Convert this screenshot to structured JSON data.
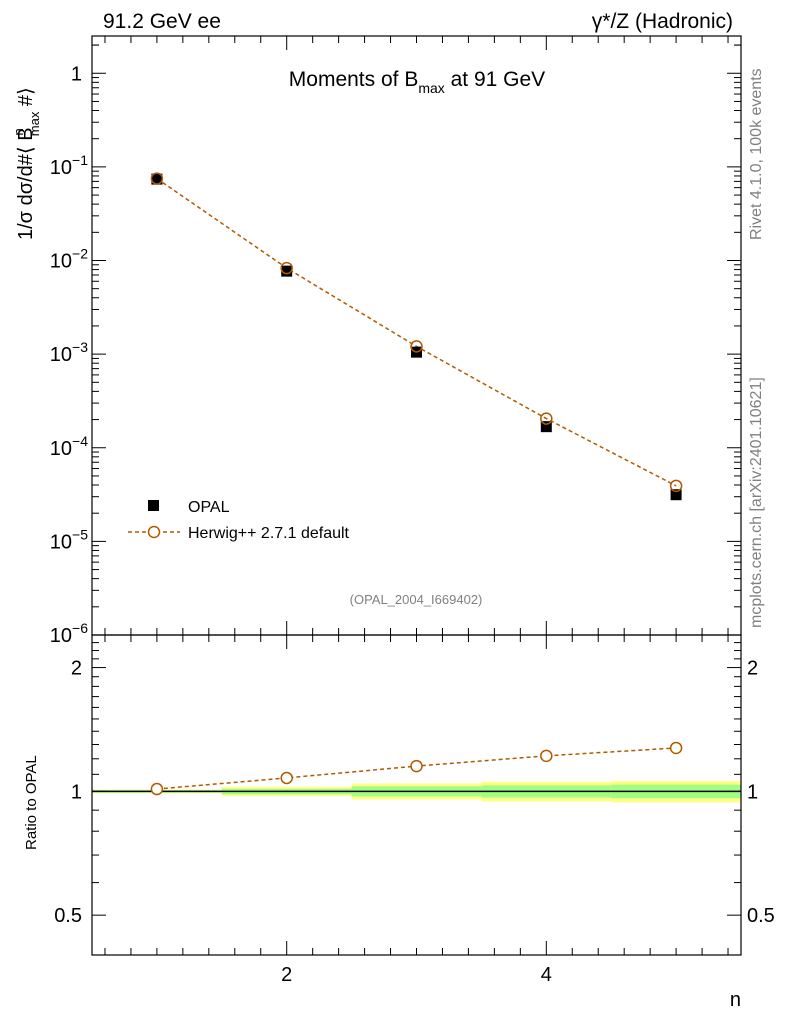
{
  "header": {
    "left_label": "91.2 GeV ee",
    "right_label": "γ*/Z (Hadronic)"
  },
  "side_labels": {
    "rivet": "Rivet 4.1.0,  100k events",
    "mcplots": "mcplots.cern.ch [arXiv:2401.10621]"
  },
  "chart_data": [
    {
      "type": "scatter",
      "panel": "main",
      "title": "Moments of B",
      "title_sub": "max",
      "title_tail": " at 91 GeV",
      "ylabel": "1/σ  dσ/d#⟨ B",
      "ylabel_sub": "max",
      "ylabel_sup": "n",
      "ylabel_tail": " #⟩",
      "yscale": "log",
      "ylim": [
        1e-06,
        2.5
      ],
      "xlim": [
        0.5,
        5.5
      ],
      "y_ticks": [
        {
          "value": 1,
          "label": "1",
          "sup": ""
        },
        {
          "value": 0.1,
          "label": "10",
          "sup": "−1"
        },
        {
          "value": 0.01,
          "label": "10",
          "sup": "−2"
        },
        {
          "value": 0.001,
          "label": "10",
          "sup": "−3"
        },
        {
          "value": 0.0001,
          "label": "10",
          "sup": "−4"
        },
        {
          "value": 1e-05,
          "label": "10",
          "sup": "−5"
        },
        {
          "value": 1e-06,
          "label": "10",
          "sup": "−6"
        }
      ],
      "x": [
        1,
        2,
        3,
        4,
        5
      ],
      "series": [
        {
          "name": "OPAL",
          "marker": "square",
          "color": "#000000",
          "values": [
            0.074,
            0.0077,
            0.00105,
            0.000168,
            3.15e-05
          ]
        },
        {
          "name": "Herwig++ 2.7.1 default",
          "marker": "open-circle",
          "color": "#b35900",
          "values": [
            0.075,
            0.0083,
            0.00121,
            0.000205,
            3.92e-05
          ]
        }
      ],
      "legend_position": "bottom-left",
      "annotation": "(OPAL_2004_I669402)"
    },
    {
      "type": "line",
      "panel": "ratio",
      "ylabel": "Ratio to OPAL",
      "xlabel": "n",
      "ylim": [
        0.4,
        2.4
      ],
      "xlim": [
        0.5,
        5.5
      ],
      "x_ticks": [
        2,
        4
      ],
      "y_ticks": [
        {
          "value": 2,
          "label": "2"
        },
        {
          "value": 1,
          "label": "1"
        },
        {
          "value": 0.5,
          "label": "0.5"
        }
      ],
      "x": [
        1,
        2,
        3,
        4,
        5
      ],
      "reference": 1,
      "band_edges": [
        0.5,
        1.5,
        2.5,
        3.5,
        4.5,
        5.5
      ],
      "stat_band": [
        [
          0.993,
          1.007
        ],
        [
          0.983,
          1.015
        ],
        [
          0.972,
          1.028
        ],
        [
          0.966,
          1.034
        ],
        [
          0.962,
          1.038
        ]
      ],
      "total_band": [
        [
          0.99,
          1.01
        ],
        [
          0.975,
          1.025
        ],
        [
          0.955,
          1.045
        ],
        [
          0.945,
          1.055
        ],
        [
          0.94,
          1.06
        ]
      ],
      "series": [
        {
          "name": "Herwig++ 2.7.1 default",
          "color": "#b35900",
          "values": [
            1.013,
            1.078,
            1.152,
            1.22,
            1.275
          ]
        }
      ],
      "colors": {
        "total_band": "#ffff88",
        "stat_band": "#a0ff80",
        "reference": "#000000"
      }
    }
  ]
}
